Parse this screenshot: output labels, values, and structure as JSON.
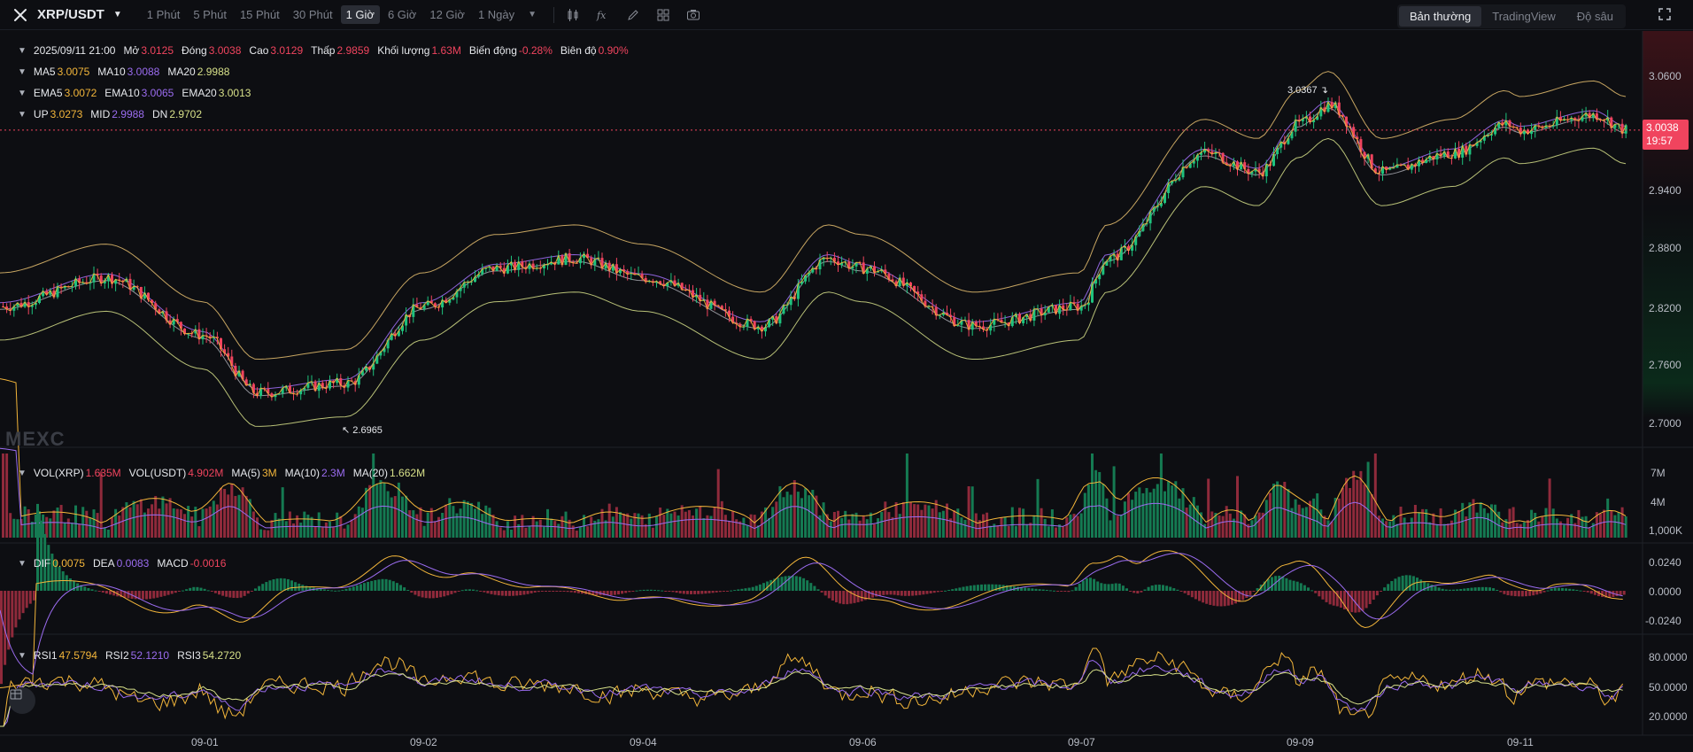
{
  "toolbar": {
    "symbol": "XRP/USDT",
    "timeframes": [
      "1 Phút",
      "5 Phút",
      "15 Phút",
      "30 Phút",
      "1 Giờ",
      "6 Giờ",
      "12 Giờ",
      "1 Ngày"
    ],
    "active_timeframe": "1 Giờ",
    "view_modes": [
      "Bản thường",
      "TradingView",
      "Độ sâu"
    ],
    "active_view": "Bản thường"
  },
  "ohlc": {
    "datetime": "2025/09/11 21:00",
    "open_label": "Mở",
    "open": "3.0125",
    "close_label": "Đóng",
    "close": "3.0038",
    "high_label": "Cao",
    "high": "3.0129",
    "low_label": "Thấp",
    "low": "2.9859",
    "volume_label": "Khối lượng",
    "volume": "1.63M",
    "change_label": "Biến động",
    "change": "-0.28%",
    "amplitude_label": "Biên độ",
    "amplitude": "0.90%"
  },
  "ma": {
    "ma5_label": "MA5",
    "ma5": "3.0075",
    "ma10_label": "MA10",
    "ma10": "3.0088",
    "ma20_label": "MA20",
    "ma20": "2.9988"
  },
  "ema": {
    "ema5_label": "EMA5",
    "ema5": "3.0072",
    "ema10_label": "EMA10",
    "ema10": "3.0065",
    "ema20_label": "EMA20",
    "ema20": "3.0013"
  },
  "boll": {
    "up_label": "UP",
    "up": "3.0273",
    "mid_label": "MID",
    "mid": "2.9988",
    "dn_label": "DN",
    "dn": "2.9702"
  },
  "volume_legend": {
    "vol_xrp_label": "VOL(XRP)",
    "vol_xrp": "1.635M",
    "vol_usdt_label": "VOL(USDT)",
    "vol_usdt": "4.902M",
    "ma5_label": "MA(5)",
    "ma5": "3M",
    "ma10_label": "MA(10)",
    "ma10": "2.3M",
    "ma20_label": "MA(20)",
    "ma20": "1.662M"
  },
  "macd_legend": {
    "dif_label": "DIF",
    "dif": "0.0075",
    "dea_label": "DEA",
    "dea": "0.0083",
    "macd_label": "MACD",
    "macd": "-0.0016"
  },
  "rsi_legend": {
    "rsi1_label": "RSI1",
    "rsi1": "47.5794",
    "rsi2_label": "RSI2",
    "rsi2": "52.1210",
    "rsi3_label": "RSI3",
    "rsi3": "54.2720"
  },
  "price_axis": [
    "3.0600",
    "2.9400",
    "2.8800",
    "2.8200",
    "2.7600",
    "2.7000"
  ],
  "current_price": "3.0038",
  "countdown": "19:57",
  "high_marker": "3.0367",
  "low_marker": "2.6965",
  "volume_axis": [
    "7M",
    "4M",
    "1,000K"
  ],
  "macd_axis": [
    "0.0240",
    "0.0000",
    "-0.0240"
  ],
  "rsi_axis": [
    "80.0000",
    "50.0000",
    "20.0000"
  ],
  "x_axis": [
    "09-01",
    "09-02",
    "09-04",
    "09-06",
    "09-07",
    "09-09",
    "09-11"
  ],
  "watermark": "MEXC",
  "colors": {
    "up": "#1fc27e",
    "down": "#f0445e",
    "ma5": "#f2b53a",
    "ma10": "#9b6cf0",
    "ma20": "#d7e089",
    "boll": "#e8c070"
  },
  "chart_data": {
    "type": "candlestick",
    "key_points": [
      {
        "x": "09-01",
        "close": 2.79
      },
      {
        "x": "09-02",
        "close": 2.82
      },
      {
        "x": "09-04",
        "close": 2.85
      },
      {
        "x": "09-06",
        "close": 2.86
      },
      {
        "x": "09-07",
        "close": 2.82
      },
      {
        "x": "09-09",
        "close": 3.01
      },
      {
        "x": "09-11",
        "close": 3.0038
      }
    ],
    "high": 3.0367,
    "low": 2.6965
  }
}
